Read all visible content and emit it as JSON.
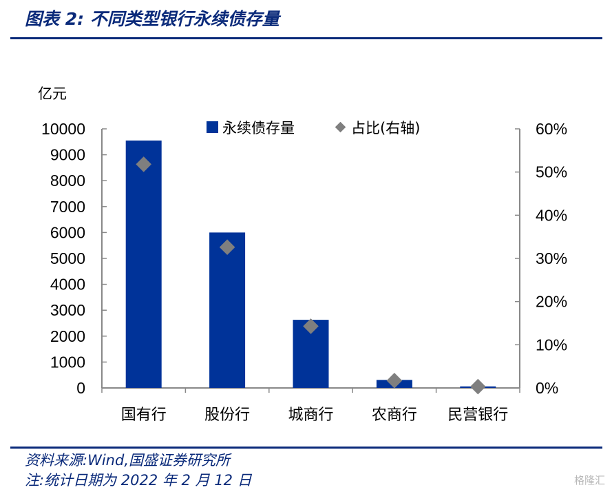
{
  "header": {
    "title": "图表 2:  不同类型银行永续债存量"
  },
  "footer": {
    "source": "资料来源:Wind,国盛证券研究所",
    "note": "注:统计日期为 2022 年 2 月 12 日"
  },
  "watermark": "格隆汇",
  "chart_data": {
    "type": "bar",
    "categories": [
      "国有行",
      "股份行",
      "城商行",
      "农商行",
      "民营银行"
    ],
    "series": [
      {
        "name": "永续债存量",
        "type": "bar",
        "axis": "left",
        "color": "#003399",
        "values": [
          9550,
          6000,
          2630,
          310,
          60
        ]
      },
      {
        "name": "占比(右轴)",
        "type": "scatter",
        "axis": "right",
        "marker": "diamond",
        "color": "#7f7f7f",
        "values": [
          51.8,
          32.6,
          14.3,
          1.7,
          0.3
        ]
      }
    ],
    "y_left": {
      "unit": "亿元",
      "ylim": [
        0,
        10000
      ],
      "ticks": [
        "0",
        "1000",
        "2000",
        "3000",
        "4000",
        "5000",
        "6000",
        "7000",
        "8000",
        "9000",
        "10000"
      ]
    },
    "y_right": {
      "ylim": [
        0,
        60
      ],
      "ticks": [
        "0%",
        "10%",
        "20%",
        "30%",
        "40%",
        "50%",
        "60%"
      ]
    },
    "legend": {
      "position": "top-center",
      "items": [
        "永续债存量",
        "占比(右轴)"
      ]
    },
    "grid": false
  }
}
